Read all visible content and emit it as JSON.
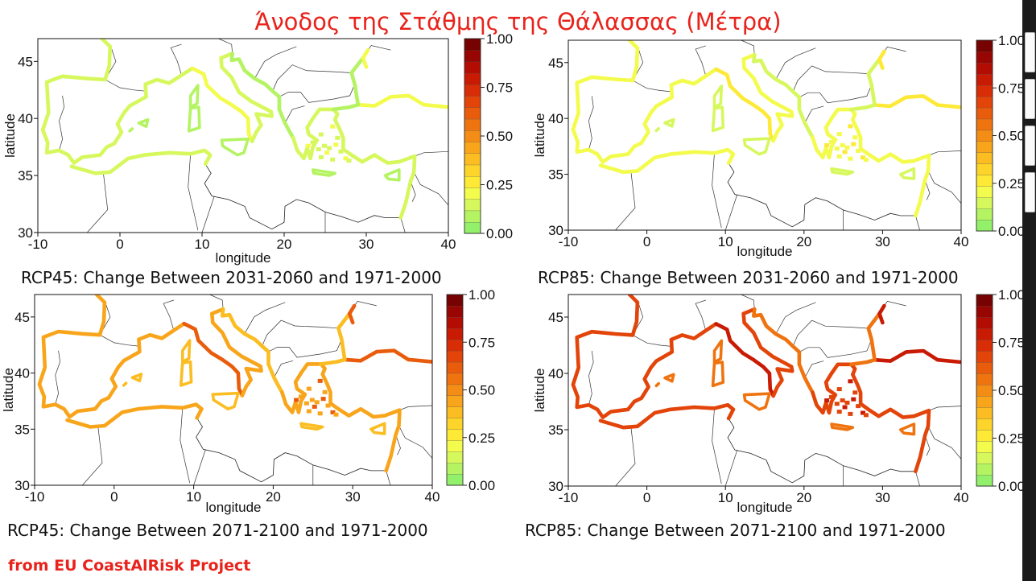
{
  "title": "Άνοδος της Στάθμης της Θάλασσας (Μέτρα)",
  "source": "from EU CoastAlRisk Project",
  "colorbar": {
    "labels": [
      "0.00",
      "0.25",
      "0.50",
      "0.75",
      "1.00"
    ],
    "colors": [
      "#93f06a",
      "#b4f463",
      "#d6f85d",
      "#f3fb4c",
      "#fde936",
      "#fdd42a",
      "#fbbd22",
      "#f8a51b",
      "#f48d15",
      "#ef7410",
      "#e95c0c",
      "#e24409",
      "#d82d06",
      "#c91a04",
      "#b30d03",
      "#970602",
      "#760201"
    ]
  },
  "axes": {
    "xlabel": "longitude",
    "ylabel": "latitude",
    "xticks": [
      "-10",
      "0",
      "10",
      "20",
      "30",
      "40"
    ],
    "yticks": [
      "30",
      "35",
      "40",
      "45"
    ]
  },
  "panels": [
    {
      "id": "rcp45-2031-2060",
      "caption": "RCP45: Change Between 2031-2060 and 1971-2000",
      "base_color": "#d6f85d",
      "accent_color": "#b4f463",
      "hot_color": "#f3fb4c"
    },
    {
      "id": "rcp85-2031-2060",
      "caption": "RCP85: Change Between 2031-2060 and 1971-2000",
      "base_color": "#f3fb4c",
      "accent_color": "#d6f85d",
      "hot_color": "#fde936"
    },
    {
      "id": "rcp45-2071-2100",
      "caption": "RCP45: Change Between 2071-2100 and 1971-2000",
      "base_color": "#f8a51b",
      "accent_color": "#fbbd22",
      "hot_color": "#e95c0c"
    },
    {
      "id": "rcp85-2071-2100",
      "caption": "RCP85: Change Between 2071-2100 and 1971-2000",
      "base_color": "#e24409",
      "accent_color": "#ef7410",
      "hot_color": "#c91a04"
    }
  ]
}
